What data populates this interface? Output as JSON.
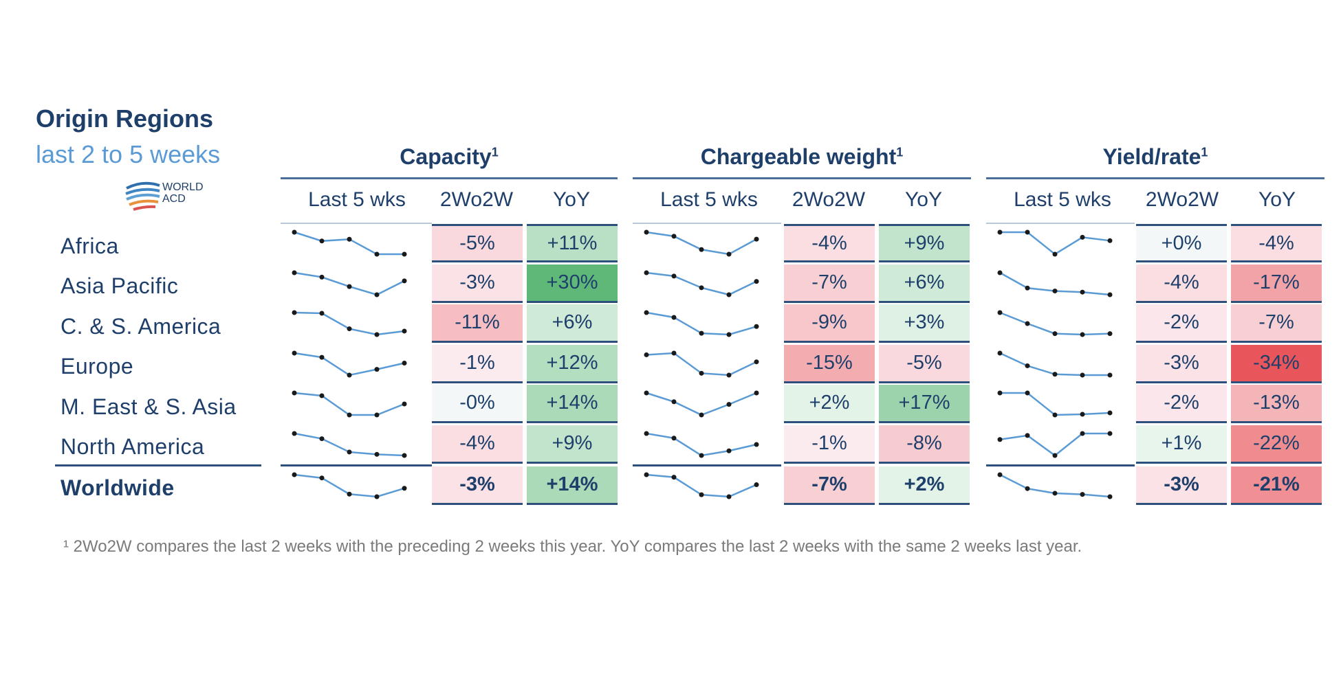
{
  "header": {
    "title": "Origin Regions",
    "subtitle": "last 2 to 5 weeks",
    "logo_text": "WORLD ACD"
  },
  "sections": [
    {
      "title": "Capacity",
      "sup": "1"
    },
    {
      "title": "Chargeable weight",
      "sup": "1"
    },
    {
      "title": "Yield/rate",
      "sup": "1"
    }
  ],
  "columns": [
    "Last 5 wks",
    "2Wo2W",
    "YoY"
  ],
  "regions": [
    "Africa",
    "Asia Pacific",
    "C. & S. America",
    "Europe",
    "M. East & S. Asia",
    "North America",
    "Worldwide"
  ],
  "footnote": "¹ 2Wo2W compares the last 2 weeks with the preceding 2 weeks this year. YoY compares the last 2 weeks with the same 2 weeks last year.",
  "colors": {
    "navy": "#1f3f6b",
    "sparkline": "#5b9bd5",
    "positive_strong": "#5fb878",
    "negative_strong": "#e8555a"
  },
  "chart_data": {
    "type": "table",
    "title": "Origin Regions",
    "subtitle": "last 2 to 5 weeks",
    "rows": [
      "Africa",
      "Asia Pacific",
      "C. & S. America",
      "Europe",
      "M. East & S. Asia",
      "North America",
      "Worldwide"
    ],
    "series": [
      {
        "name": "Capacity",
        "wow": [
          "-5%",
          "-3%",
          "-11%",
          "-1%",
          "-0%",
          "-4%",
          "-3%"
        ],
        "wow_values": [
          -5,
          -3,
          -11,
          -1,
          0,
          -4,
          -3
        ],
        "yoy": [
          "+11%",
          "+30%",
          "+6%",
          "+12%",
          "+14%",
          "+9%",
          "+14%"
        ],
        "yoy_values": [
          11,
          30,
          6,
          12,
          14,
          9,
          14
        ],
        "trend": [
          [
            100,
            99,
            99.2,
            97.5,
            97.5
          ],
          [
            100,
            99.3,
            97.8,
            96.5,
            98.7
          ],
          [
            100,
            99.7,
            93,
            90.5,
            92
          ],
          [
            100,
            99.2,
            95.8,
            96.9,
            98.1
          ],
          [
            100,
            99.9,
            99.2,
            99.2,
            99.6
          ],
          [
            100,
            99.1,
            96.8,
            96.4,
            96.2
          ],
          [
            100,
            99.5,
            97,
            96.6,
            97.9
          ]
        ]
      },
      {
        "name": "Chargeable weight",
        "wow": [
          "-4%",
          "-7%",
          "-9%",
          "-15%",
          "+2%",
          "-1%",
          "-7%"
        ],
        "wow_values": [
          -4,
          -7,
          -9,
          -15,
          2,
          -1,
          -7
        ],
        "yoy": [
          "+9%",
          "+6%",
          "+3%",
          "-5%",
          "+17%",
          "-8%",
          "+2%"
        ],
        "yoy_values": [
          9,
          6,
          3,
          -5,
          17,
          -8,
          2
        ],
        "trend": [
          [
            100,
            99.3,
            97,
            96.2,
            98.8
          ],
          [
            100,
            99,
            95.5,
            93.4,
            97.4
          ],
          [
            100,
            97.8,
            90.5,
            89.9,
            93.6
          ],
          [
            100,
            101,
            89,
            87.9,
            95.8
          ],
          [
            100,
            99,
            97.5,
            98.7,
            100
          ],
          [
            100,
            96,
            81,
            85,
            90.5
          ],
          [
            100,
            99,
            92,
            91.2,
            96
          ]
        ]
      },
      {
        "name": "Yield/rate",
        "wow": [
          "+0%",
          "-4%",
          "-2%",
          "-3%",
          "-2%",
          "+1%",
          "-3%"
        ],
        "wow_values": [
          0,
          -4,
          -2,
          -3,
          -2,
          1,
          -3
        ],
        "yoy": [
          "-4%",
          "-17%",
          "-7%",
          "-34%",
          "-13%",
          "-22%",
          "-21%"
        ],
        "yoy_values": [
          -4,
          -17,
          -7,
          -34,
          -13,
          -22,
          -21
        ],
        "trend": [
          [
            100,
            100,
            97.4,
            99.4,
            99
          ],
          [
            100,
            91.8,
            90.2,
            89.6,
            88.2
          ],
          [
            100,
            98.8,
            97.7,
            97.6,
            97.7
          ],
          [
            100,
            98.5,
            97.5,
            97.4,
            97.4
          ],
          [
            100,
            100,
            96.8,
            96.9,
            97.1
          ],
          [
            100,
            100.2,
            99.2,
            100.3,
            100.3
          ],
          [
            100,
            97.6,
            96.8,
            96.6,
            96.2
          ]
        ]
      }
    ]
  }
}
